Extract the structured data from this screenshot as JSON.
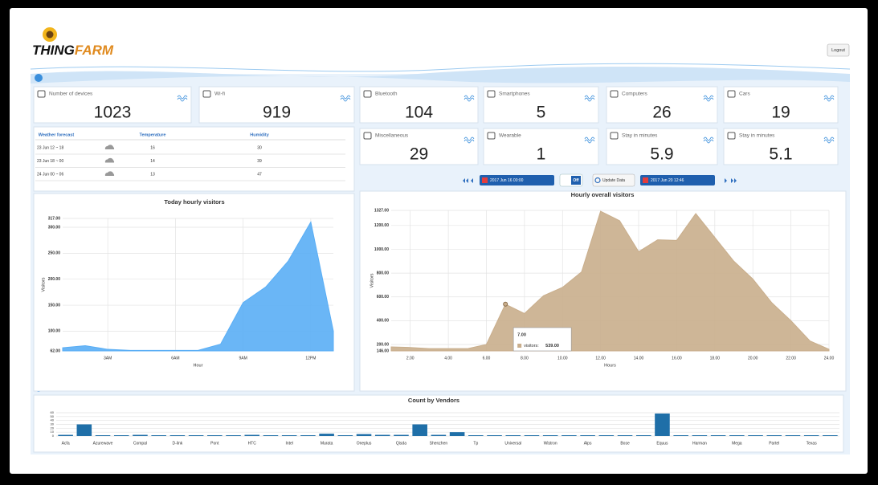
{
  "header": {
    "logo": {
      "first": "THING",
      "second": "FARM"
    },
    "logout": "Logout"
  },
  "cards": [
    {
      "label": "Number of devices",
      "value": 1023
    },
    {
      "label": "Wi-fi",
      "value": 919
    },
    {
      "label": "Bluetooth",
      "value": 104
    },
    {
      "label": "Smartphones",
      "value": 5
    },
    {
      "label": "Computers",
      "value": 26
    },
    {
      "label": "Cars",
      "value": 19
    },
    {
      "label": "Miscellaneous",
      "value": 29
    },
    {
      "label": "Wearable",
      "value": 1
    },
    {
      "label": "Stay in minutes",
      "value": 5.9
    },
    {
      "label": "Stay in minutes",
      "value": 5.1
    }
  ],
  "weather": {
    "headers": [
      "Weather forecast",
      "Temperature",
      "Humidity"
    ],
    "rows": [
      [
        "23 Jun 12 ~ 18",
        16,
        30
      ],
      [
        "23 Jun 18 ~ 00",
        14,
        39
      ],
      [
        "24 Jun 00 ~ 06",
        13,
        47
      ]
    ]
  },
  "controls": {
    "start": "2017 Jun 16 00:00",
    "toggle": "Off",
    "update": "Update Data",
    "end": "2017 Jun 20 12:46"
  },
  "chart_data": [
    {
      "type": "area",
      "title": "Today hourly visitors",
      "x_label": "Hour",
      "y_label": "Visitors",
      "color": "#5aaef5",
      "x": [
        1,
        2,
        3,
        4,
        5,
        6,
        7,
        8,
        9,
        10,
        11,
        12,
        13
      ],
      "values": [
        68,
        72,
        65,
        63,
        63,
        63,
        63,
        75,
        155,
        185,
        235,
        310,
        100
      ],
      "xlim": [
        1,
        13
      ],
      "xticks": [
        {
          "value": 3,
          "label": "3AM"
        },
        {
          "value": 6,
          "label": "6AM"
        },
        {
          "value": 9,
          "label": "9AM"
        },
        {
          "value": 12,
          "label": "12PM"
        }
      ],
      "ylim": [
        62,
        317
      ],
      "yticks": [
        {
          "value": 62,
          "label": "62.00"
        },
        {
          "value": 100,
          "label": "100.00"
        },
        {
          "value": 150,
          "label": "150.00"
        },
        {
          "value": 200,
          "label": "200.00"
        },
        {
          "value": 250,
          "label": "250.00"
        },
        {
          "value": 300,
          "label": "300.00"
        },
        {
          "value": 317,
          "label": "317.00"
        }
      ],
      "grid": true
    },
    {
      "type": "area",
      "title": "Hourly overall visitors",
      "x_label": "Hours",
      "y_label": "Visitors",
      "color": "#c9ae8c",
      "x": [
        1,
        2,
        3,
        4,
        5,
        6,
        7,
        8,
        9,
        10,
        11,
        12,
        13,
        14,
        15,
        16,
        17,
        18,
        19,
        20,
        21,
        22,
        23,
        24
      ],
      "values": [
        180,
        175,
        165,
        165,
        165,
        200,
        539,
        460,
        610,
        680,
        810,
        1320,
        1240,
        980,
        1080,
        1075,
        1300,
        1100,
        900,
        750,
        550,
        400,
        230,
        160
      ],
      "xlim": [
        1,
        24
      ],
      "xticks": [
        {
          "value": 2,
          "label": "2.00"
        },
        {
          "value": 4,
          "label": "4.00"
        },
        {
          "value": 6,
          "label": "6.00"
        },
        {
          "value": 8,
          "label": "8.00"
        },
        {
          "value": 10,
          "label": "10.00"
        },
        {
          "value": 12,
          "label": "12.00"
        },
        {
          "value": 14,
          "label": "14.00"
        },
        {
          "value": 16,
          "label": "16.00"
        },
        {
          "value": 18,
          "label": "18.00"
        },
        {
          "value": 20,
          "label": "20.00"
        },
        {
          "value": 22,
          "label": "22.00"
        },
        {
          "value": 24,
          "label": "24.00"
        }
      ],
      "ylim": [
        146,
        1327
      ],
      "yticks": [
        {
          "value": 146,
          "label": "146.00"
        },
        {
          "value": 200,
          "label": "200.00"
        },
        {
          "value": 400,
          "label": "400.00"
        },
        {
          "value": 600,
          "label": "600.00"
        },
        {
          "value": 800,
          "label": "800.00"
        },
        {
          "value": 1000,
          "label": "1000.00"
        },
        {
          "value": 1200,
          "label": "1200.00"
        },
        {
          "value": 1327,
          "label": "1327.00"
        }
      ],
      "grid": true,
      "tooltip": {
        "index": 6,
        "title": "7.00",
        "label": "visitors:",
        "value": "539.00"
      }
    },
    {
      "type": "bar",
      "title": "Count by Vendors",
      "color": "#1f6fa8",
      "categories": [
        "Acfa",
        null,
        "Azurewave",
        null,
        "Compal",
        null,
        "D-link",
        null,
        "Pont",
        null,
        "HTC",
        null,
        "Intel",
        null,
        "Murata",
        null,
        "Oneplus",
        null,
        "Qisda",
        null,
        "Shenzhen",
        null,
        "Tp",
        null,
        "Universal",
        null,
        "Wistron",
        null,
        "Alps",
        null,
        "Bose",
        null,
        "Equus",
        null,
        "Harman",
        null,
        "Mega",
        null,
        "Partel",
        null,
        "Texas",
        null
      ],
      "values": [
        3,
        30,
        2,
        2,
        3,
        2,
        2,
        2,
        2,
        2,
        3,
        2,
        2,
        2,
        6,
        2,
        5,
        3,
        3,
        30,
        3,
        10,
        2,
        2,
        2,
        2,
        2,
        2,
        2,
        2,
        2,
        2,
        58,
        2,
        2,
        2,
        2,
        2,
        2,
        2,
        2,
        2
      ],
      "ylim": [
        0,
        60
      ],
      "yticks": [
        0,
        10,
        20,
        30,
        40,
        50,
        60
      ],
      "grid": true
    }
  ]
}
